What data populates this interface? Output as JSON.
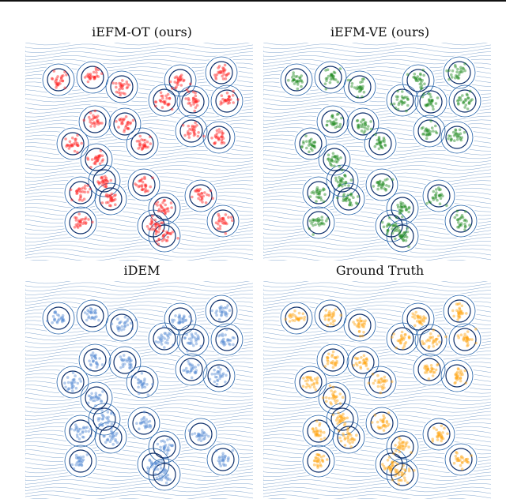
{
  "figure": {
    "panels": [
      {
        "title": "iEFM-OT (ours)",
        "color": "#ff2020"
      },
      {
        "title": "iEFM-VE (ours)",
        "color": "#1f8a1f"
      },
      {
        "title": "iDEM",
        "color": "#5b8fd4"
      },
      {
        "title": "Ground Truth",
        "color": "#ffa510"
      }
    ],
    "contour_color": "#1f5fa8"
  },
  "chart_data": [
    {
      "type": "scatter",
      "title": "iEFM-OT (ours)",
      "series": [
        {
          "color": "#ff2020",
          "points": "sample"
        }
      ]
    },
    {
      "type": "scatter",
      "title": "iEFM-VE (ours)",
      "series": [
        {
          "color": "#1f8a1f",
          "points": "sample"
        }
      ]
    },
    {
      "type": "scatter",
      "title": "iDEM",
      "series": [
        {
          "color": "#5b8fd4",
          "points": "sample"
        }
      ]
    },
    {
      "type": "scatter",
      "title": "Ground Truth",
      "series": [
        {
          "color": "#ffa510",
          "points": "sample"
        }
      ]
    }
  ]
}
